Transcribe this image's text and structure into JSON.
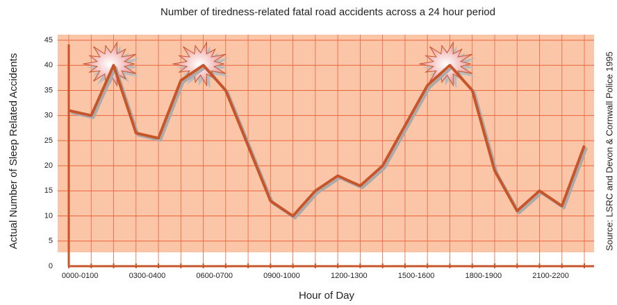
{
  "chart_data": {
    "type": "line",
    "title": "Number of tiredness-related fatal road accidents across a 24 hour period",
    "x_label": "Hour of Day",
    "y_label": "Actual Number of Sleep Related Accidents",
    "source": "Source: LSRC and Devon & Cornwall Police 1995",
    "categories": [
      "0000-0100",
      null,
      null,
      "0300-0400",
      null,
      null,
      "0600-0700",
      null,
      null,
      "0900-1000",
      null,
      null,
      "1200-1300",
      null,
      null,
      "1500-1600",
      null,
      null,
      "1800-1900",
      null,
      null,
      "2100-2200",
      null,
      null
    ],
    "values": [
      31,
      30,
      40,
      26.5,
      25.5,
      37,
      40,
      35,
      24,
      13,
      10,
      15,
      18,
      16,
      20,
      28,
      36,
      40,
      35,
      19,
      11,
      15,
      12,
      24
    ],
    "color": "#c8552a",
    "ylim": [
      0,
      45
    ],
    "yticks": [
      0,
      5,
      10,
      15,
      20,
      25,
      30,
      35,
      40,
      45
    ],
    "grid": true
  }
}
